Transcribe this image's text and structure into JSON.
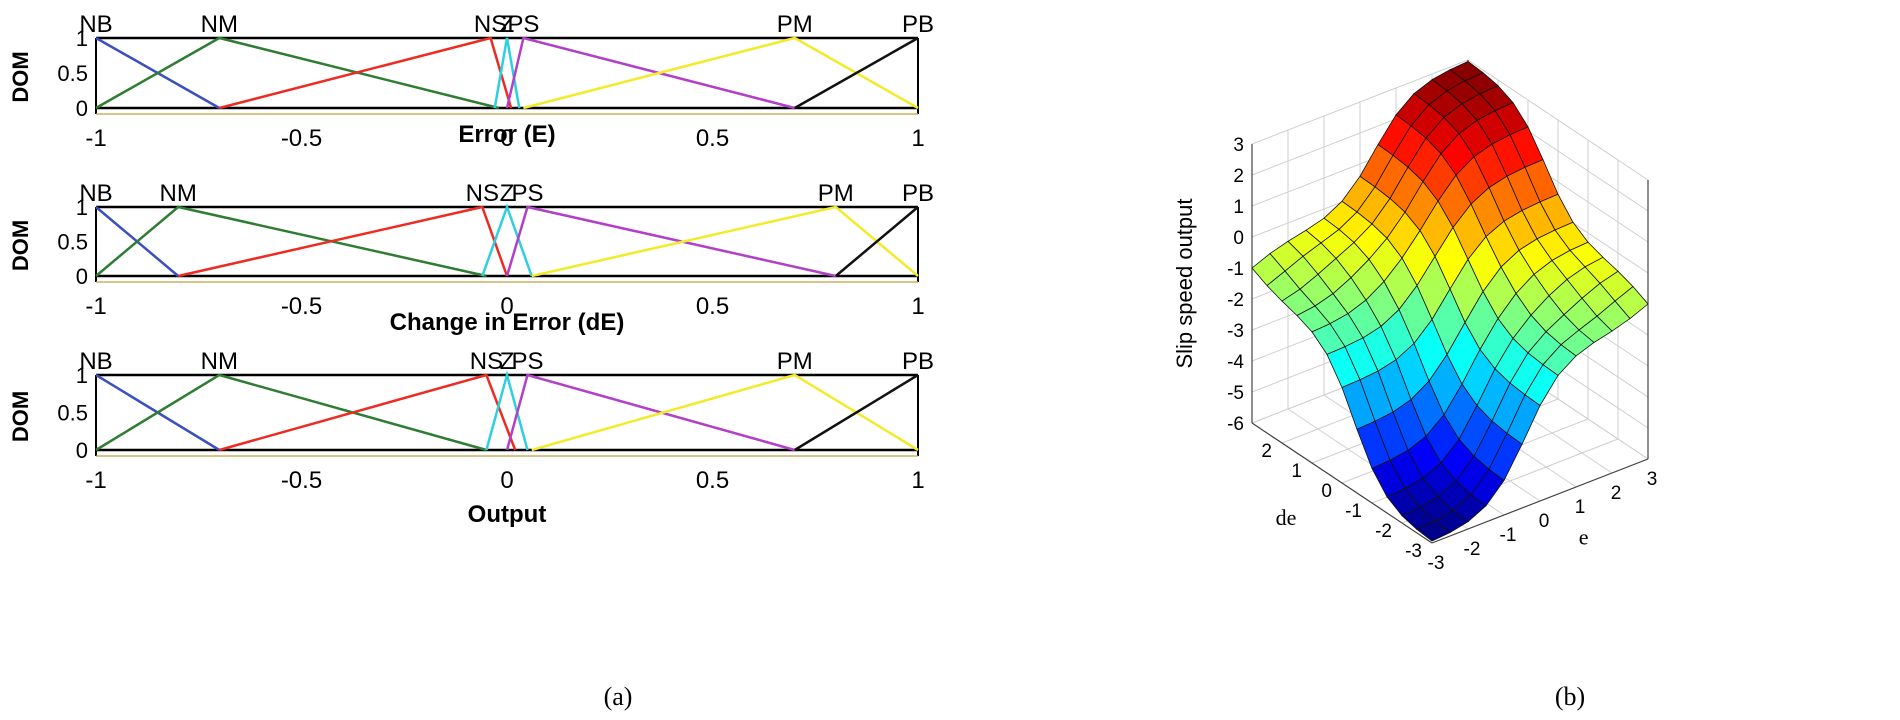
{
  "figure": {
    "panel_a_caption": "(a)",
    "panel_b_caption": "(b)"
  },
  "colors": {
    "NB": "#3a4fc0",
    "NM": "#2e7d32",
    "NS": "#ee2b23",
    "Z": "#2ecfe0",
    "PS": "#b23fc8",
    "PM": "#f3ea2a",
    "PB": "#111111"
  },
  "chart_data": [
    {
      "type": "line",
      "title": "",
      "xlabel": "Error (E)",
      "ylabel": "DOM",
      "xlim": [
        -1,
        1
      ],
      "ylim": [
        0,
        1
      ],
      "xticks": [
        "-1",
        "-0.5",
        "0",
        "0.5",
        "1"
      ],
      "yticks": [
        "0",
        "0.5",
        "1"
      ],
      "series": [
        {
          "name": "NB",
          "x": [
            -1,
            -0.7
          ],
          "y": [
            1,
            0
          ]
        },
        {
          "name": "NM",
          "x": [
            -1,
            -0.7,
            -0.02
          ],
          "y": [
            0,
            1,
            0
          ]
        },
        {
          "name": "NS",
          "x": [
            -0.7,
            -0.04,
            0.01
          ],
          "y": [
            0,
            1,
            0
          ]
        },
        {
          "name": "Z",
          "x": [
            -0.03,
            0,
            0.03
          ],
          "y": [
            0,
            1,
            0
          ]
        },
        {
          "name": "PS",
          "x": [
            0,
            0.04,
            0.7
          ],
          "y": [
            0,
            1,
            0
          ]
        },
        {
          "name": "PM",
          "x": [
            0.04,
            0.7,
            1
          ],
          "y": [
            0,
            1,
            0
          ]
        },
        {
          "name": "PB",
          "x": [
            0.7,
            1
          ],
          "y": [
            0,
            1
          ]
        }
      ]
    },
    {
      "type": "line",
      "title": "",
      "xlabel": "Change in Error (dE)",
      "ylabel": "DOM",
      "xlim": [
        -1,
        1
      ],
      "ylim": [
        0,
        1
      ],
      "xticks": [
        "-1",
        "-0.5",
        "0",
        "0.5",
        "1"
      ],
      "yticks": [
        "0",
        "0.5",
        "1"
      ],
      "series": [
        {
          "name": "NB",
          "x": [
            -1,
            -0.8
          ],
          "y": [
            1,
            0
          ]
        },
        {
          "name": "NM",
          "x": [
            -1,
            -0.8,
            -0.05
          ],
          "y": [
            0,
            1,
            0
          ]
        },
        {
          "name": "NS",
          "x": [
            -0.8,
            -0.06,
            0
          ],
          "y": [
            0,
            1,
            0
          ]
        },
        {
          "name": "Z",
          "x": [
            -0.06,
            0,
            0.06
          ],
          "y": [
            0,
            1,
            0
          ]
        },
        {
          "name": "PS",
          "x": [
            0,
            0.05,
            0.8
          ],
          "y": [
            0,
            1,
            0
          ]
        },
        {
          "name": "PM",
          "x": [
            0.06,
            0.8,
            1
          ],
          "y": [
            0,
            1,
            0
          ]
        },
        {
          "name": "PB",
          "x": [
            0.8,
            1
          ],
          "y": [
            0,
            1
          ]
        }
      ]
    },
    {
      "type": "line",
      "title": "",
      "xlabel": "Output",
      "ylabel": "DOM",
      "xlim": [
        -1,
        1
      ],
      "ylim": [
        0,
        1
      ],
      "xticks": [
        "-1",
        "-0.5",
        "0",
        "0.5",
        "1"
      ],
      "yticks": [
        "0",
        "0.5",
        "1"
      ],
      "series": [
        {
          "name": "NB",
          "x": [
            -1,
            -0.7
          ],
          "y": [
            1,
            0
          ]
        },
        {
          "name": "NM",
          "x": [
            -1,
            -0.7,
            -0.05
          ],
          "y": [
            0,
            1,
            0
          ]
        },
        {
          "name": "NS",
          "x": [
            -0.7,
            -0.05,
            0.02
          ],
          "y": [
            0,
            1,
            0
          ]
        },
        {
          "name": "Z",
          "x": [
            -0.05,
            0,
            0.05
          ],
          "y": [
            0,
            1,
            0
          ]
        },
        {
          "name": "PS",
          "x": [
            0,
            0.05,
            0.7
          ],
          "y": [
            0,
            1,
            0
          ]
        },
        {
          "name": "PM",
          "x": [
            0.06,
            0.7,
            1
          ],
          "y": [
            0,
            1,
            0
          ]
        },
        {
          "name": "PB",
          "x": [
            0.7,
            1
          ],
          "y": [
            0,
            1
          ]
        }
      ]
    },
    {
      "type": "surface",
      "title": "",
      "xlabel": "e",
      "ylabel": "de",
      "zlabel": "Slip speed output",
      "xlim": [
        -3,
        3
      ],
      "ylim": [
        -3,
        3
      ],
      "zlim": [
        -6,
        3
      ],
      "xticks": [
        "-3",
        "-2",
        "-1",
        "0",
        "1",
        "2",
        "3"
      ],
      "yticks": [
        "-3",
        "-2",
        "-1",
        "0",
        "1",
        "2"
      ],
      "zticks": [
        "3",
        "2",
        "1",
        "0",
        "-1",
        "-2",
        "-3",
        "-4",
        "-5",
        "-6"
      ],
      "grid": true,
      "description_levels": {
        "e_pos_de_pos": 3,
        "e_neg_de_neg": -6,
        "off_diagonal": -1
      }
    }
  ]
}
